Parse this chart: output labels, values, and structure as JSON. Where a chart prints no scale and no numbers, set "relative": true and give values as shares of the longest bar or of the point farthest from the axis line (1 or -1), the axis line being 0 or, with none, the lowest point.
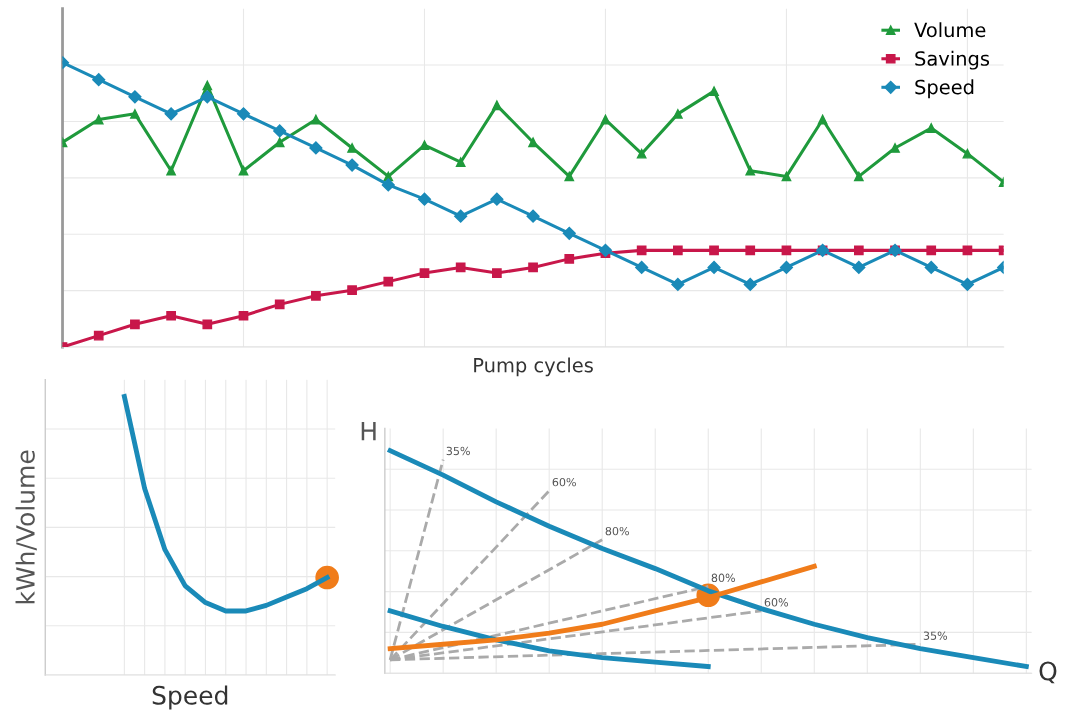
{
  "chart_data": [
    {
      "type": "line",
      "xlabel": "Pump cycles",
      "relative": true,
      "grid": true,
      "legend": "top right",
      "categories": [
        null,
        null,
        null,
        null,
        null,
        null,
        null,
        null,
        null,
        null,
        null,
        null,
        null,
        null,
        null,
        null,
        null,
        null,
        null,
        null,
        null,
        null,
        null,
        null,
        null,
        null,
        null
      ],
      "series": [
        {
          "name": "Volume",
          "color": "#1f9a3c",
          "marker": "triangle",
          "values": [
            0.72,
            0.8,
            0.82,
            0.62,
            0.92,
            0.62,
            0.72,
            0.8,
            0.7,
            0.6,
            0.71,
            0.65,
            0.85,
            0.72,
            0.6,
            0.8,
            0.68,
            0.82,
            0.9,
            0.62,
            0.6,
            0.8,
            0.6,
            0.7,
            0.77,
            0.68,
            0.58
          ]
        },
        {
          "name": "Savings",
          "color": "#c8174a",
          "marker": "square",
          "values": [
            0,
            0.04,
            0.08,
            0.11,
            0.08,
            0.11,
            0.15,
            0.18,
            0.2,
            0.23,
            0.26,
            0.28,
            0.26,
            0.28,
            0.31,
            0.33,
            0.34,
            0.34,
            0.34,
            0.34,
            0.34,
            0.34,
            0.34,
            0.34,
            0.34,
            0.34,
            0.34
          ]
        },
        {
          "name": "Speed",
          "color": "#1a8ab8",
          "marker": "diamond",
          "values": [
            1.0,
            0.94,
            0.88,
            0.82,
            0.88,
            0.82,
            0.76,
            0.7,
            0.64,
            0.57,
            0.52,
            0.46,
            0.52,
            0.46,
            0.4,
            0.34,
            0.28,
            0.22,
            0.28,
            0.22,
            0.28,
            0.34,
            0.28,
            0.34,
            0.28,
            0.22,
            0.28
          ]
        }
      ]
    },
    {
      "type": "line",
      "xlabel": "Speed",
      "ylabel": "kWh/Volume",
      "relative": true,
      "grid": true,
      "categories": [
        null,
        null,
        null,
        null,
        null,
        null,
        null,
        null,
        null,
        null,
        null
      ],
      "series": [
        {
          "color": "#1a8ab8",
          "values": [
            1.0,
            0.67,
            0.45,
            0.32,
            0.26,
            0.23,
            0.23,
            0.25,
            0.28,
            0.31,
            0.35
          ]
        },
        {
          "color": "#f07c1a",
          "marker": "circle",
          "values": [
            null,
            null,
            null,
            null,
            null,
            null,
            null,
            null,
            null,
            null,
            0.35
          ]
        }
      ]
    },
    {
      "type": "line",
      "xlabel": "Q",
      "ylabel": "H",
      "relative": true,
      "grid": true,
      "categories": [
        null,
        null,
        null,
        null,
        null,
        null,
        null,
        null,
        null,
        null,
        null,
        null,
        null
      ],
      "series": [
        {
          "name": "35%",
          "color": "#aaaaaa",
          "line_style": "dashed",
          "values": [
            0.06,
            0.96,
            null,
            null,
            null,
            null,
            null,
            null,
            null,
            null,
            null,
            null,
            null
          ]
        },
        {
          "name": "60%",
          "color": "#aaaaaa",
          "line_style": "dashed",
          "values": [
            0.06,
            null,
            null,
            0.82,
            null,
            null,
            null,
            null,
            null,
            null,
            null,
            null,
            null
          ]
        },
        {
          "name": "80%",
          "color": "#aaaaaa",
          "line_style": "dashed",
          "values": [
            0.06,
            null,
            null,
            null,
            0.6,
            null,
            null,
            null,
            null,
            null,
            null,
            null,
            null
          ]
        },
        {
          "name": "80%",
          "color": "#aaaaaa",
          "line_style": "dashed",
          "values": [
            0.06,
            null,
            null,
            null,
            null,
            null,
            0.39,
            null,
            null,
            null,
            null,
            null,
            null
          ]
        },
        {
          "name": "60%",
          "color": "#aaaaaa",
          "line_style": "dashed",
          "values": [
            0.06,
            null,
            null,
            null,
            null,
            null,
            null,
            0.28,
            null,
            null,
            null,
            null,
            null
          ]
        },
        {
          "name": "35%",
          "color": "#aaaaaa",
          "line_style": "dashed",
          "values": [
            0.06,
            null,
            null,
            null,
            null,
            null,
            null,
            null,
            null,
            null,
            0.13,
            null,
            null
          ]
        },
        {
          "color": "#1a8ab8",
          "values": [
            1.0,
            0.89,
            0.77,
            0.66,
            0.56,
            0.47,
            0.37,
            0.29,
            0.22,
            0.16,
            0.11,
            0.07,
            0.03
          ]
        },
        {
          "color": "#1a8ab8",
          "values": [
            0.28,
            0.21,
            0.15,
            0.1,
            0.07,
            0.05,
            0.03,
            null,
            null,
            null,
            null,
            null,
            null
          ]
        },
        {
          "color": "#f07c1a",
          "values": [
            0.11,
            0.13,
            0.15,
            0.18,
            0.22,
            0.28,
            0.34,
            0.41,
            0.48,
            null,
            null,
            null,
            null
          ]
        },
        {
          "color": "#f07c1a",
          "marker": "circle",
          "values": [
            null,
            null,
            null,
            null,
            null,
            null,
            0.35,
            null,
            null,
            null,
            null,
            null,
            null
          ]
        }
      ]
    }
  ]
}
